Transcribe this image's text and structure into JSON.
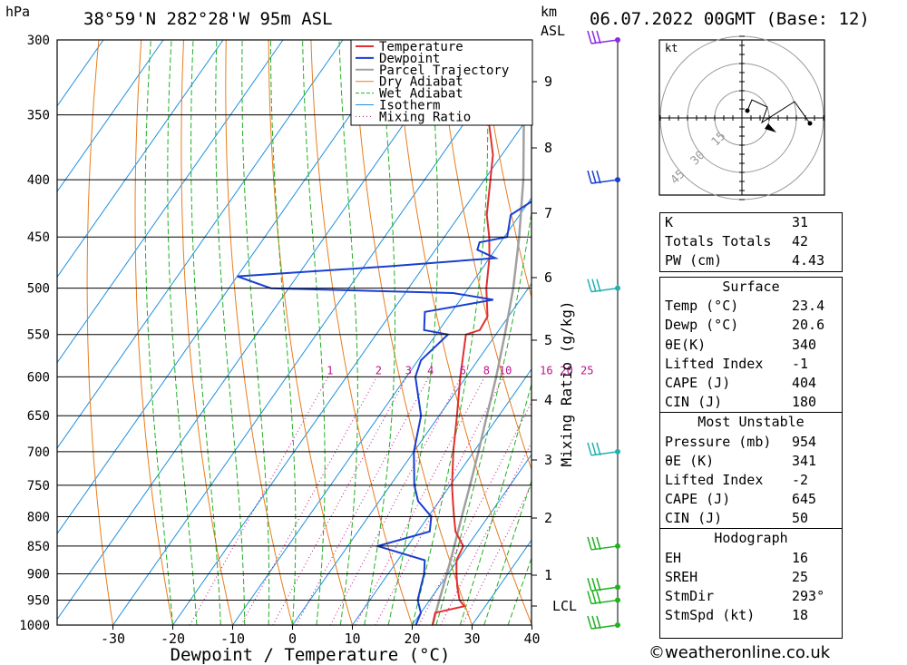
{
  "header": {
    "pressure_unit": "hPa",
    "location": "38°59'N 282°28'W 95m ASL",
    "km_unit": "km",
    "km_asl": "ASL",
    "datetime": "06.07.2022 00GMT (Base: 12)"
  },
  "legend": [
    "Temperature",
    "Dewpoint",
    "Parcel Trajectory",
    "Dry Adiabat",
    "Wet Adiabat",
    "Isotherm",
    "Mixing Ratio"
  ],
  "colors": {
    "temperature": "#e03030",
    "dewpoint": "#1a3fd0",
    "parcel": "#a0a0a0",
    "dry_adiabat": "#e87d1e",
    "wet_adiabat": "#20b020",
    "isotherm": "#1e90e0",
    "mixing_ratio": "#c0108c",
    "wind_barb": "#20b0b0"
  },
  "chart_data": {
    "type": "skew-t",
    "xlabel": "Dewpoint / Temperature (°C)",
    "ylabel": "hPa",
    "right_axis_label": "Mixing Ratio (g/kg)",
    "pressure_ticks": [
      300,
      350,
      400,
      450,
      500,
      550,
      600,
      650,
      700,
      750,
      800,
      850,
      900,
      950,
      1000
    ],
    "temperature_ticks": [
      -30,
      -20,
      -10,
      0,
      10,
      20,
      30,
      40
    ],
    "km_ticks": [
      1,
      2,
      3,
      4,
      5,
      6,
      7,
      8,
      9
    ],
    "lcl_label": "LCL",
    "mixing_ratio_labels": [
      "1",
      "2",
      "3",
      "4",
      "6",
      "8",
      "10",
      "16",
      "20",
      "25"
    ],
    "temperature": [
      {
        "p": 1000,
        "t": 23.4
      },
      {
        "p": 975,
        "t": 22.4
      },
      {
        "p": 962,
        "t": 26.5
      },
      {
        "p": 950,
        "t": 25.0
      },
      {
        "p": 925,
        "t": 23.1
      },
      {
        "p": 900,
        "t": 21.4
      },
      {
        "p": 875,
        "t": 19.8
      },
      {
        "p": 850,
        "t": 19.3
      },
      {
        "p": 825,
        "t": 16.3
      },
      {
        "p": 800,
        "t": 14.3
      },
      {
        "p": 775,
        "t": 12.3
      },
      {
        "p": 750,
        "t": 10.3
      },
      {
        "p": 700,
        "t": 6.6
      },
      {
        "p": 650,
        "t": 3.0
      },
      {
        "p": 600,
        "t": -1.0
      },
      {
        "p": 550,
        "t": -5.0
      },
      {
        "p": 545,
        "t": -3.2
      },
      {
        "p": 530,
        "t": -3.5
      },
      {
        "p": 500,
        "t": -7.0
      },
      {
        "p": 470,
        "t": -10.0
      },
      {
        "p": 450,
        "t": -12.5
      },
      {
        "p": 430,
        "t": -15.5
      },
      {
        "p": 400,
        "t": -19.0
      },
      {
        "p": 380,
        "t": -21.5
      },
      {
        "p": 350,
        "t": -27.0
      },
      {
        "p": 325,
        "t": -31.5
      },
      {
        "p": 300,
        "t": -36.5
      }
    ],
    "dewpoint": [
      {
        "p": 1000,
        "t": 20.6
      },
      {
        "p": 975,
        "t": 20.0
      },
      {
        "p": 950,
        "t": 18.0
      },
      {
        "p": 925,
        "t": 17.0
      },
      {
        "p": 900,
        "t": 16.0
      },
      {
        "p": 875,
        "t": 14.5
      },
      {
        "p": 850,
        "t": 5.0
      },
      {
        "p": 825,
        "t": 12.0
      },
      {
        "p": 800,
        "t": 10.5
      },
      {
        "p": 775,
        "t": 6.5
      },
      {
        "p": 750,
        "t": 4.0
      },
      {
        "p": 700,
        "t": 0.0
      },
      {
        "p": 650,
        "t": -3.0
      },
      {
        "p": 600,
        "t": -8.5
      },
      {
        "p": 580,
        "t": -9.5
      },
      {
        "p": 550,
        "t": -8.0
      },
      {
        "p": 545,
        "t": -12.5
      },
      {
        "p": 525,
        "t": -14.5
      },
      {
        "p": 512,
        "t": -4.5
      },
      {
        "p": 505,
        "t": -12.0
      },
      {
        "p": 500,
        "t": -43.0
      },
      {
        "p": 488,
        "t": -50.0
      },
      {
        "p": 478,
        "t": -26.0
      },
      {
        "p": 470,
        "t": -9.0
      },
      {
        "p": 462,
        "t": -13.0
      },
      {
        "p": 455,
        "t": -13.5
      },
      {
        "p": 450,
        "t": -9.5
      },
      {
        "p": 430,
        "t": -11.5
      },
      {
        "p": 415,
        "t": -9.0
      },
      {
        "p": 400,
        "t": -12.0
      },
      {
        "p": 380,
        "t": -14.5
      },
      {
        "p": 360,
        "t": -18.0
      },
      {
        "p": 340,
        "t": -20.5
      },
      {
        "p": 330,
        "t": -32.0
      },
      {
        "p": 310,
        "t": -39.0
      },
      {
        "p": 300,
        "t": -38.0
      }
    ],
    "parcel": [
      {
        "p": 1000,
        "t": 23.4
      },
      {
        "p": 950,
        "t": 21.6
      },
      {
        "p": 900,
        "t": 19.8
      },
      {
        "p": 850,
        "t": 17.8
      },
      {
        "p": 800,
        "t": 15.6
      },
      {
        "p": 750,
        "t": 13.3
      },
      {
        "p": 700,
        "t": 10.8
      },
      {
        "p": 650,
        "t": 8.0
      },
      {
        "p": 600,
        "t": 5.0
      },
      {
        "p": 550,
        "t": 1.5
      },
      {
        "p": 500,
        "t": -2.5
      },
      {
        "p": 450,
        "t": -7.5
      },
      {
        "p": 400,
        "t": -13.5
      },
      {
        "p": 350,
        "t": -21.0
      },
      {
        "p": 300,
        "t": -30.0
      }
    ],
    "wind_barb_levels": [
      300,
      400,
      500,
      700,
      850,
      925,
      950,
      1000
    ]
  },
  "hodograph": {
    "unit": "kt",
    "ring_labels": [
      "15",
      "30",
      "45"
    ]
  },
  "indices": [
    {
      "label": "K",
      "value": "31"
    },
    {
      "label": "Totals Totals",
      "value": "42"
    },
    {
      "label": "PW (cm)",
      "value": "4.43"
    }
  ],
  "surface": {
    "title": "Surface",
    "rows": [
      {
        "label": "Temp (°C)",
        "value": "23.4"
      },
      {
        "label": "Dewp (°C)",
        "value": "20.6"
      },
      {
        "label": "θE(K)",
        "value": "340"
      },
      {
        "label": "Lifted Index",
        "value": "-1"
      },
      {
        "label": "CAPE (J)",
        "value": "404"
      },
      {
        "label": "CIN (J)",
        "value": "180"
      }
    ]
  },
  "most_unstable": {
    "title": "Most Unstable",
    "rows": [
      {
        "label": "Pressure (mb)",
        "value": "954"
      },
      {
        "label": "θE (K)",
        "value": "341"
      },
      {
        "label": "Lifted Index",
        "value": "-2"
      },
      {
        "label": "CAPE (J)",
        "value": "645"
      },
      {
        "label": "CIN (J)",
        "value": "50"
      }
    ]
  },
  "hodograph_table": {
    "title": "Hodograph",
    "rows": [
      {
        "label": "EH",
        "value": "16"
      },
      {
        "label": "SREH",
        "value": "25"
      },
      {
        "label": "StmDir",
        "value": "293°"
      },
      {
        "label": "StmSpd (kt)",
        "value": "18"
      }
    ]
  },
  "footer": {
    "copyright": "©weatheronline.co.uk"
  }
}
